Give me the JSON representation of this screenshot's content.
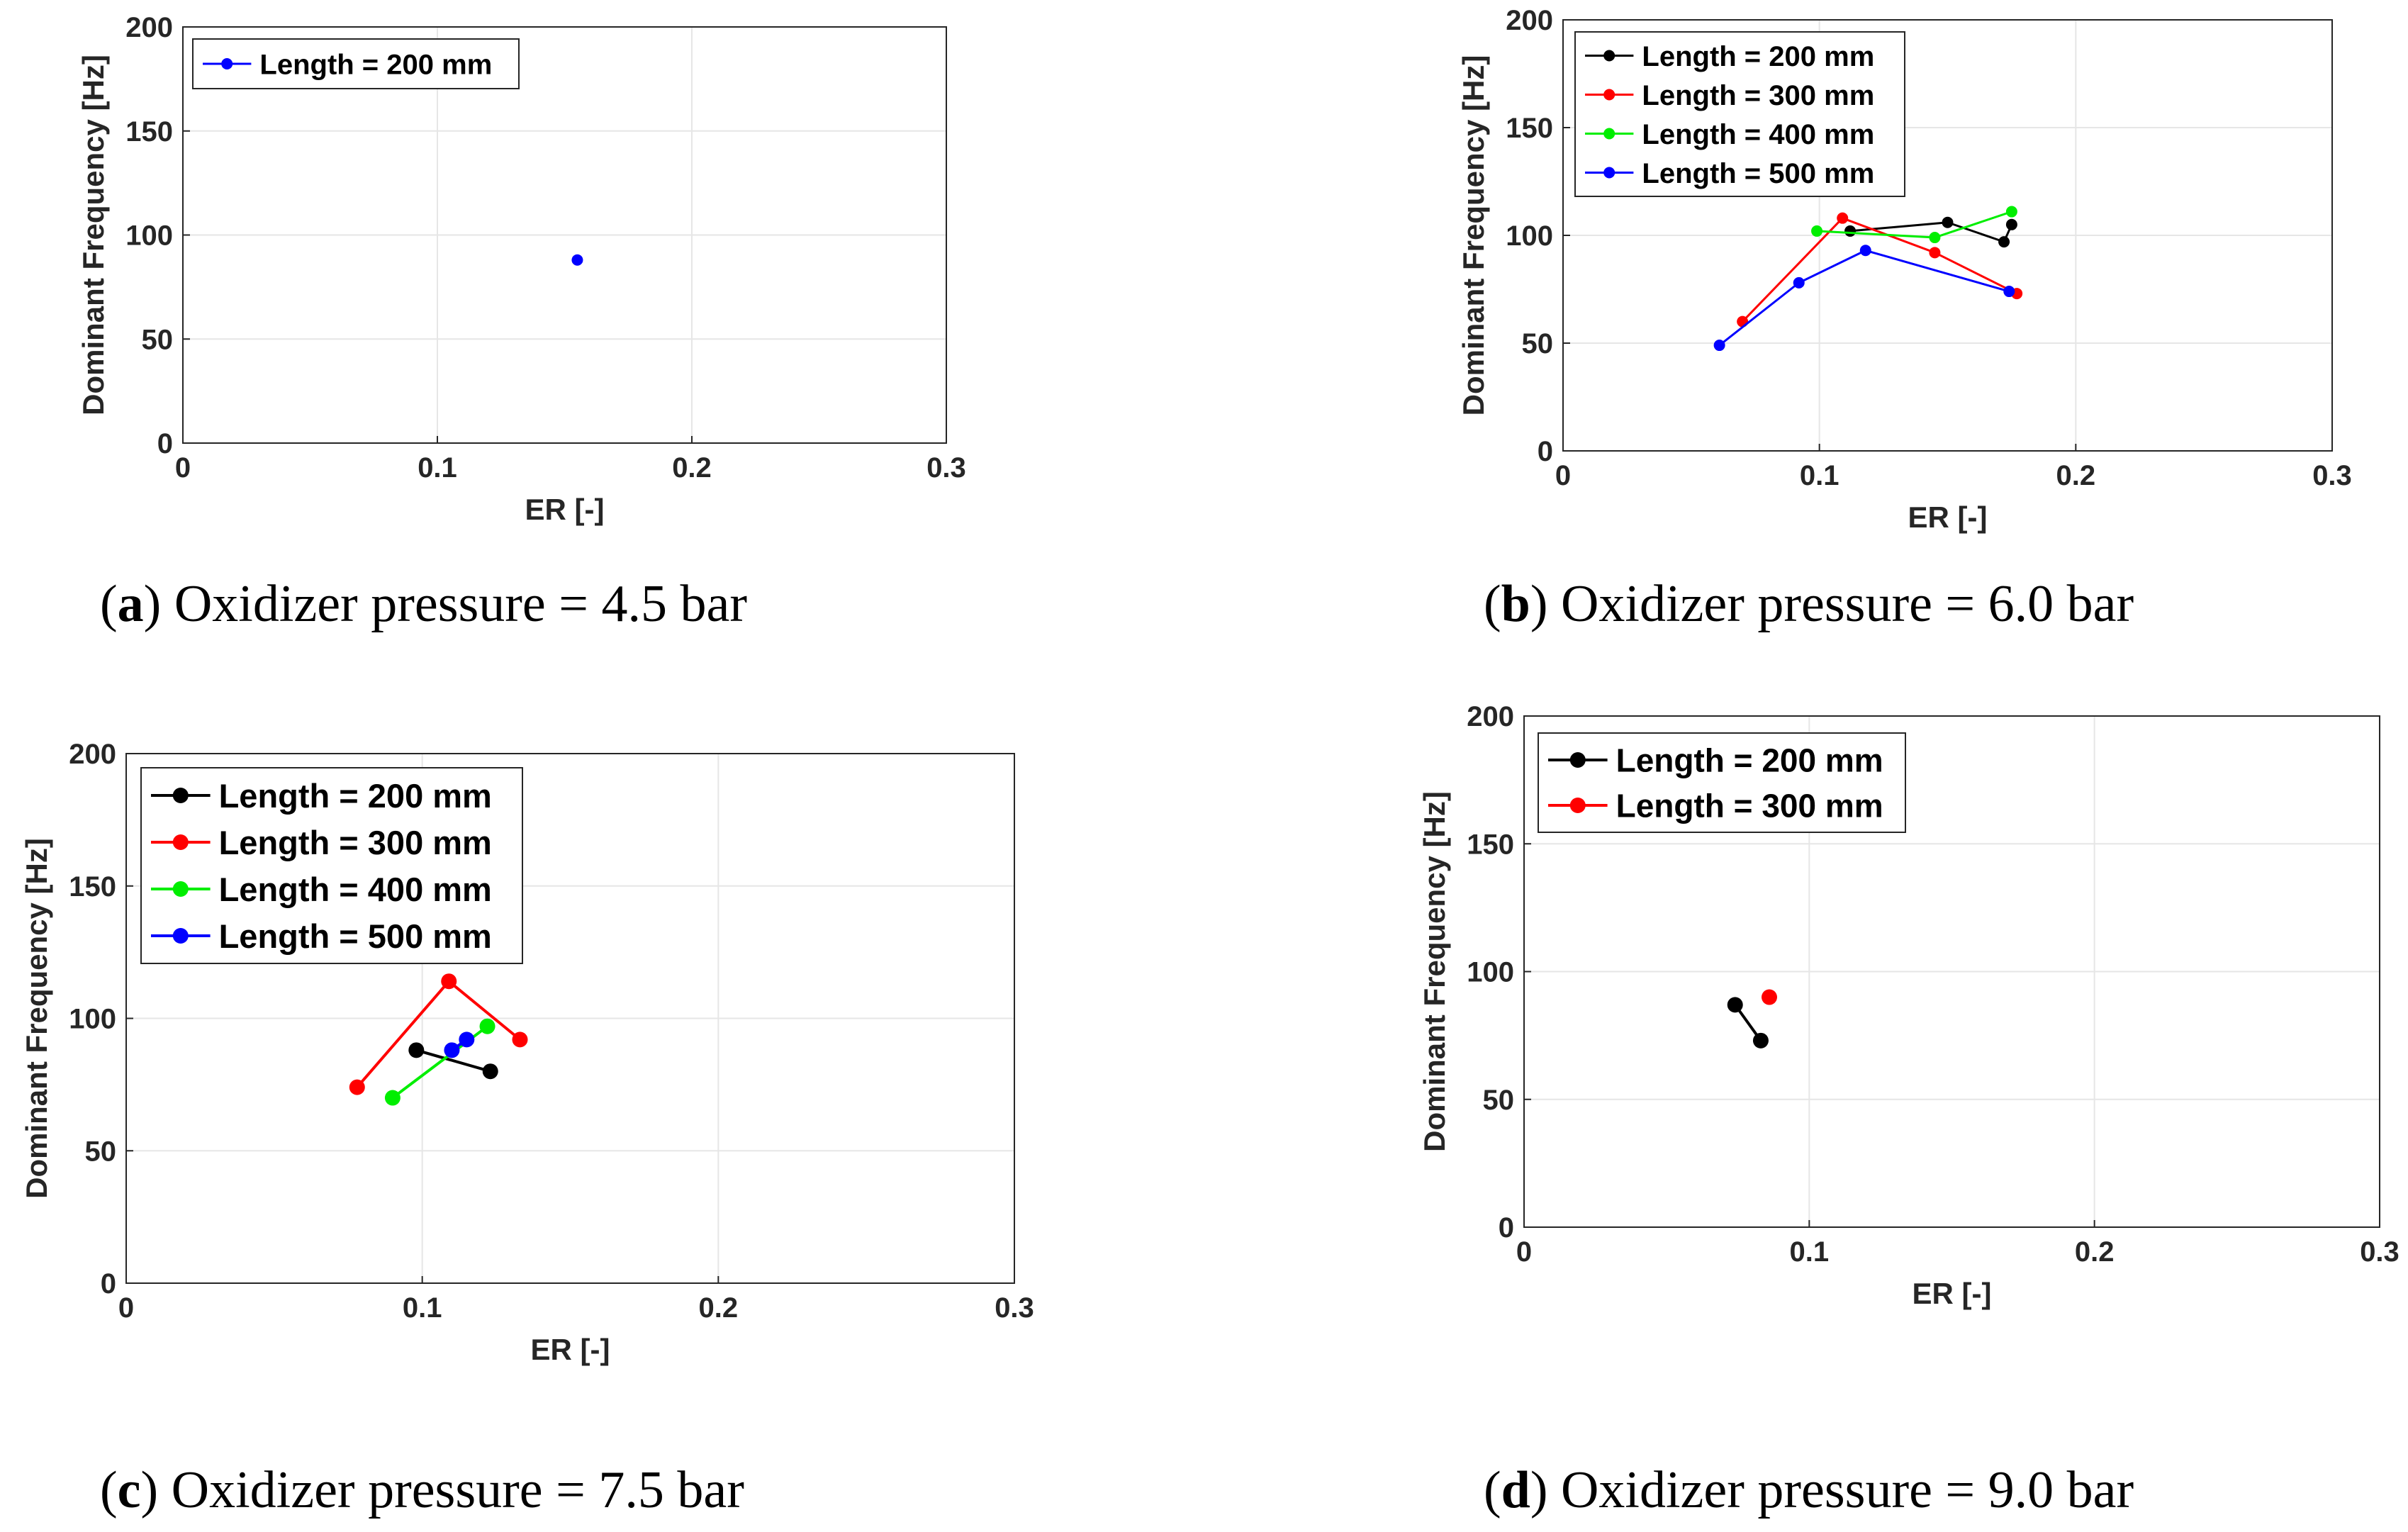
{
  "figure": {
    "captions": [
      {
        "letter": "a",
        "open": "(",
        "close": ") ",
        "text": "Oxidizer pressure = 4.5 bar"
      },
      {
        "letter": "b",
        "open": "(",
        "close": ") ",
        "text": "Oxidizer pressure = 6.0 bar"
      },
      {
        "letter": "c",
        "open": "(",
        "close": ") ",
        "text": "Oxidizer pressure = 7.5 bar"
      },
      {
        "letter": "d",
        "open": "(",
        "close": ") ",
        "text": "Oxidizer pressure = 9.0 bar"
      }
    ]
  },
  "colors": {
    "Length = 200 mm": "#000000",
    "Length = 300 mm": "#ff0000",
    "Length = 400 mm": "#00ee00",
    "Length = 500 mm": "#0000ff",
    "grid": "#e6e6e6",
    "axis": "#262626"
  },
  "chart_data": [
    {
      "type": "line",
      "title": "(a) Oxidizer pressure = 4.5 bar",
      "xlabel": "ER [-]",
      "ylabel": "Dominant Frequency [Hz]",
      "xlim": [
        0,
        0.3
      ],
      "ylim": [
        0,
        200
      ],
      "xticks": [
        0,
        0.1,
        0.2,
        0.3
      ],
      "xtick_labels": [
        "0",
        "0.1",
        "0.2",
        "0.3"
      ],
      "yticks": [
        0,
        50,
        100,
        150,
        200
      ],
      "ytick_labels": [
        "0",
        "50",
        "100",
        "150",
        "200"
      ],
      "grid": true,
      "legend_position": "top-left",
      "series": [
        {
          "name": "Length = 200 mm",
          "color": "#0000ff",
          "points": [
            [
              0.155,
              88
            ]
          ]
        }
      ]
    },
    {
      "type": "line",
      "title": "(b) Oxidizer pressure = 6.0 bar",
      "xlabel": "ER [-]",
      "ylabel": "Dominant Frequency [Hz]",
      "xlim": [
        0,
        0.3
      ],
      "ylim": [
        0,
        200
      ],
      "xticks": [
        0,
        0.1,
        0.2,
        0.3
      ],
      "xtick_labels": [
        "0",
        "0.1",
        "0.2",
        "0.3"
      ],
      "yticks": [
        0,
        50,
        100,
        150,
        200
      ],
      "ytick_labels": [
        "0",
        "50",
        "100",
        "150",
        "200"
      ],
      "grid": true,
      "legend_position": "top-left",
      "series": [
        {
          "name": "Length = 200 mm",
          "color": "#000000",
          "points": [
            [
              0.112,
              102
            ],
            [
              0.15,
              106
            ],
            [
              0.172,
              97
            ],
            [
              0.175,
              105
            ]
          ]
        },
        {
          "name": "Length = 300 mm",
          "color": "#ff0000",
          "points": [
            [
              0.07,
              60
            ],
            [
              0.109,
              108
            ],
            [
              0.145,
              92
            ],
            [
              0.177,
              73
            ]
          ]
        },
        {
          "name": "Length = 400 mm",
          "color": "#00ee00",
          "points": [
            [
              0.099,
              102
            ],
            [
              0.145,
              99
            ],
            [
              0.175,
              111
            ]
          ]
        },
        {
          "name": "Length = 500 mm",
          "color": "#0000ff",
          "points": [
            [
              0.061,
              49
            ],
            [
              0.092,
              78
            ],
            [
              0.118,
              93
            ],
            [
              0.174,
              74
            ]
          ]
        }
      ]
    },
    {
      "type": "line",
      "title": "(c) Oxidizer pressure = 7.5 bar",
      "xlabel": "ER [-]",
      "ylabel": "Dominant Frequency [Hz]",
      "xlim": [
        0,
        0.3
      ],
      "ylim": [
        0,
        200
      ],
      "xticks": [
        0,
        0.1,
        0.2,
        0.3
      ],
      "xtick_labels": [
        "0",
        "0.1",
        "0.2",
        "0.3"
      ],
      "yticks": [
        0,
        50,
        100,
        150,
        200
      ],
      "ytick_labels": [
        "0",
        "50",
        "100",
        "150",
        "200"
      ],
      "grid": true,
      "legend_position": "top-left",
      "series": [
        {
          "name": "Length = 200 mm",
          "color": "#000000",
          "points": [
            [
              0.098,
              88
            ],
            [
              0.123,
              80
            ]
          ]
        },
        {
          "name": "Length = 300 mm",
          "color": "#ff0000",
          "points": [
            [
              0.078,
              74
            ],
            [
              0.109,
              114
            ],
            [
              0.133,
              92
            ]
          ]
        },
        {
          "name": "Length = 400 mm",
          "color": "#00ee00",
          "points": [
            [
              0.09,
              70
            ],
            [
              0.122,
              97
            ]
          ]
        },
        {
          "name": "Length = 500 mm",
          "color": "#0000ff",
          "points": [
            [
              0.11,
              88
            ],
            [
              0.115,
              92
            ]
          ]
        }
      ]
    },
    {
      "type": "line",
      "title": "(d) Oxidizer pressure = 9.0 bar",
      "xlabel": "ER [-]",
      "ylabel": "Dominant Frequency [Hz]",
      "xlim": [
        0,
        0.3
      ],
      "ylim": [
        0,
        200
      ],
      "xticks": [
        0,
        0.1,
        0.2,
        0.3
      ],
      "xtick_labels": [
        "0",
        "0.1",
        "0.2",
        "0.3"
      ],
      "yticks": [
        0,
        50,
        100,
        150,
        200
      ],
      "ytick_labels": [
        "0",
        "50",
        "100",
        "150",
        "200"
      ],
      "grid": true,
      "legend_position": "top-left",
      "series": [
        {
          "name": "Length = 200 mm",
          "color": "#000000",
          "points": [
            [
              0.074,
              87
            ],
            [
              0.083,
              73
            ]
          ]
        },
        {
          "name": "Length = 300 mm",
          "color": "#ff0000",
          "points": [
            [
              0.086,
              90
            ]
          ]
        }
      ]
    }
  ]
}
